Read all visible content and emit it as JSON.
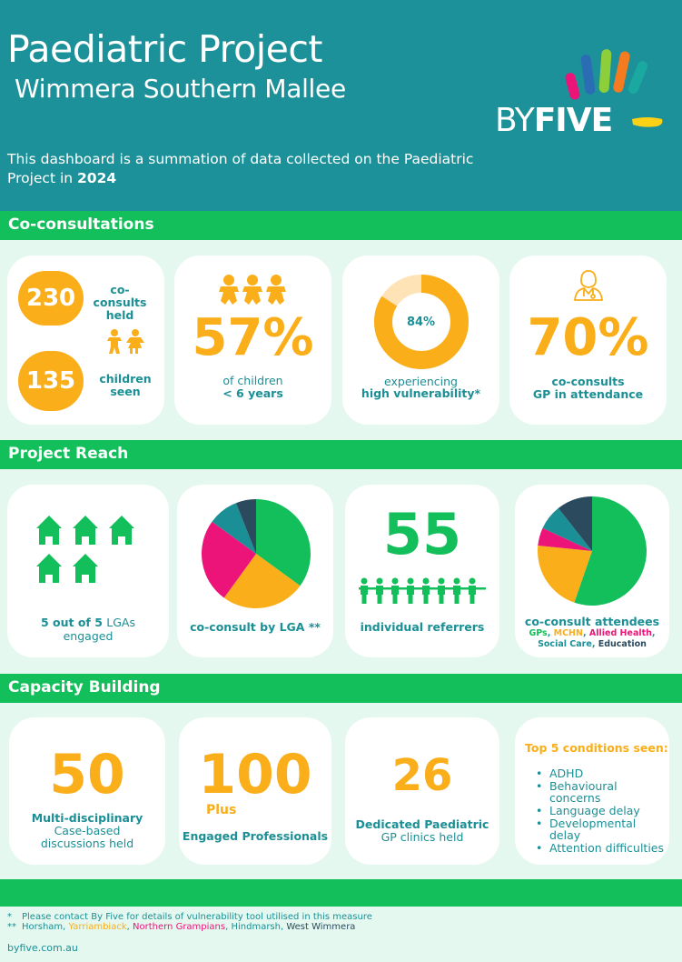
{
  "header": {
    "title": "Paediatric Project",
    "subtitle": "Wimmera Southern Mallee",
    "intro_text": "This dashboard is a summation of data collected on the Paediatric Project in ",
    "intro_year": "2024",
    "logo_by": "BY",
    "logo_five": "FIVE",
    "background": "#1d9199"
  },
  "sections": {
    "coconsult": "Co-consultations",
    "reach": "Project Reach",
    "capacity": "Capacity Building"
  },
  "coconsult": {
    "held_value": "230",
    "held_label": "co-consults held",
    "children_value": "135",
    "children_label_1": "children",
    "children_label_2": "seen",
    "under6_value": "57%",
    "under6_label_1": "of children",
    "under6_label_2": "< 6 years",
    "vuln_value": "84%",
    "vuln_fraction": 0.84,
    "vuln_label_1": "experiencing",
    "vuln_label_2": "high vulnerability*",
    "gp_value": "70%",
    "gp_label_1": "co-consults",
    "gp_label_2": "GP in attendance"
  },
  "reach": {
    "lga_label_1": "5 out of 5 ",
    "lga_label_2": "LGAs",
    "lga_label_3": "engaged",
    "by_lga_label": "co-consult by LGA **",
    "referrers_value": "55",
    "referrers_label": "individual referrers",
    "attendees_title": "co-consult attendees",
    "attendees_gps": "GPs",
    "attendees_mchn": "MCHN",
    "attendees_allied": "Allied Health",
    "attendees_social": "Social Care",
    "attendees_edu": "Education"
  },
  "chart_data": [
    {
      "type": "pie",
      "values": [
        35,
        25,
        25,
        9,
        6
      ],
      "colors": [
        "#12bf5a",
        "#f9ae1a",
        "#ec1479",
        "#1a8f95",
        "#2b4a5e"
      ]
    },
    {
      "type": "pie",
      "values": [
        52,
        20,
        5,
        7,
        10
      ],
      "colors": [
        "#12bf5a",
        "#f9ae1a",
        "#ec1479",
        "#1a8f95",
        "#2b4a5e"
      ]
    }
  ],
  "capacity": {
    "mdt_value": "50",
    "mdt_label_1": "Multi-disciplinary",
    "mdt_label_2": "Case-based",
    "mdt_label_3": "discussions held",
    "prof_value": "100",
    "prof_plus": "Plus",
    "prof_label": "Engaged Professionals",
    "clinics_value": "26",
    "clinics_label_1": "Dedicated Paediatric",
    "clinics_label_2": "GP clinics held",
    "conditions_title": "Top 5 conditions seen:",
    "conditions": [
      "ADHD",
      "Behavioural concerns",
      "Language delay",
      "Developmental delay",
      "Attention difficulties"
    ]
  },
  "footer": {
    "note1_mark": "*",
    "note1": "Please contact By Five for details of  vulnerability tool utilised in this measure",
    "note2_mark": "**",
    "lga1": "Horsham",
    "lga2": "Yarriambiack",
    "lga3": "Northern Grampians",
    "lga4": "Hindmarsh",
    "lga5": "West Wimmera",
    "website": "byfive.com.au"
  }
}
